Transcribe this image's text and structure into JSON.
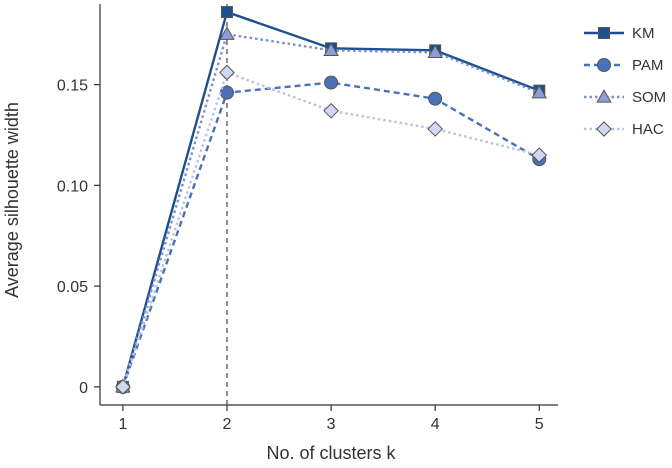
{
  "chart_data": {
    "type": "line",
    "xlabel": "No. of clusters k",
    "ylabel": "Average silhouette width",
    "x": [
      1,
      2,
      3,
      4,
      5
    ],
    "x_ticks": [
      "1",
      "2",
      "3",
      "4",
      "5"
    ],
    "y_ticks": [
      "0",
      "0.05",
      "0.10",
      "0.15"
    ],
    "y_tick_values": [
      0,
      0.05,
      0.1,
      0.15
    ],
    "xlim": [
      0.78,
      5.18
    ],
    "ylim": [
      -0.009,
      0.19
    ],
    "grid": false,
    "legend_position": "top-right",
    "reference_line": {
      "x": 2,
      "style": "dashed"
    },
    "series": [
      {
        "name": "KM",
        "values": [
          0,
          0.186,
          0.168,
          0.167,
          0.147
        ],
        "marker": "square",
        "line": "solid",
        "color": "#1d4f91",
        "fill": "#1d4f91"
      },
      {
        "name": "PAM",
        "values": [
          0,
          0.146,
          0.151,
          0.143,
          0.113
        ],
        "marker": "circle",
        "line": "dashed",
        "color": "#4a72b8",
        "fill": "#4a72b8"
      },
      {
        "name": "SOM",
        "values": [
          0,
          0.175,
          0.167,
          0.166,
          0.146
        ],
        "marker": "triangle",
        "line": "dotted",
        "color": "#7a8fc8",
        "fill": "#8d9ed4"
      },
      {
        "name": "HAC",
        "values": [
          0,
          0.156,
          0.137,
          0.128,
          0.115
        ],
        "marker": "diamond",
        "line": "dotted",
        "color": "#b9c2e3",
        "fill": "#d2d8ef"
      }
    ]
  }
}
